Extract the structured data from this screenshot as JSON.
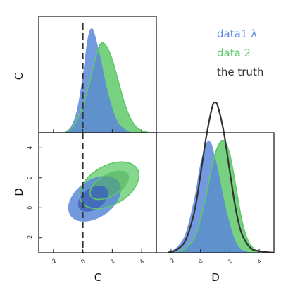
{
  "legend": [
    {
      "label": "data1 λ",
      "color": "#5b87d9"
    },
    {
      "label": "data 2",
      "color": "#5fc96a"
    },
    {
      "label": "the truth",
      "color": "#333333"
    }
  ],
  "chart_data": {
    "type": "corner",
    "parameters": [
      "C",
      "D"
    ],
    "axis_ranges": {
      "C": [
        -3,
        5
      ],
      "D": [
        -3,
        5
      ]
    },
    "ticks": [
      -2,
      0,
      2,
      4
    ],
    "truth_marker": {
      "parameter": "C",
      "value": 0,
      "style": "dashed vertical line"
    },
    "colors": {
      "data1": "#5b87d9",
      "data2": "#5fc96a",
      "truth": "#333333"
    },
    "panels": [
      {
        "panel": "C-marginal",
        "type": "area",
        "series": [
          {
            "name": "data1 λ",
            "x": [
              -1.2,
              -0.8,
              -0.4,
              0,
              0.2,
              0.4,
              0.6,
              0.8,
              1.2,
              1.6,
              2.0,
              2.4,
              2.8,
              3.2
            ],
            "values": [
              0.01,
              0.06,
              0.22,
              0.55,
              0.78,
              0.95,
              1.0,
              0.95,
              0.72,
              0.45,
              0.24,
              0.1,
              0.04,
              0.01
            ]
          },
          {
            "name": "data 2",
            "x": [
              -1.2,
              -0.8,
              -0.4,
              0,
              0.4,
              0.8,
              1.2,
              1.6,
              2.0,
              2.4,
              2.8,
              3.2,
              3.6,
              4.0,
              4.4
            ],
            "values": [
              0.01,
              0.04,
              0.12,
              0.26,
              0.45,
              0.68,
              0.85,
              0.83,
              0.7,
              0.5,
              0.3,
              0.15,
              0.06,
              0.02,
              0.005
            ]
          }
        ]
      },
      {
        "panel": "C-D-joint",
        "type": "contour",
        "series": [
          {
            "name": "data1 λ",
            "contours": [
              {
                "level": "outer",
                "center": [
                  0.8,
                  0.6
                ],
                "rx": 2.0,
                "ry": 1.25,
                "angle_deg": 35
              },
              {
                "level": "inner",
                "center": [
                  0.7,
                  0.6
                ],
                "rx": 1.15,
                "ry": 0.7,
                "angle_deg": 35
              }
            ]
          },
          {
            "name": "data 2",
            "contours": [
              {
                "level": "outer",
                "center": [
                  1.8,
                  1.5
                ],
                "rx": 2.2,
                "ry": 1.3,
                "angle_deg": 30
              },
              {
                "level": "inner",
                "center": [
                  1.8,
                  1.5
                ],
                "rx": 1.45,
                "ry": 0.72,
                "angle_deg": 30
              }
            ]
          }
        ]
      },
      {
        "panel": "D-marginal",
        "type": "area",
        "series": [
          {
            "name": "data1 λ",
            "x": [
              -2.2,
              -1.6,
              -1.0,
              -0.4,
              0,
              0.4,
              0.6,
              0.8,
              1.2,
              1.6,
              2.0,
              2.4,
              2.8,
              3.2
            ],
            "values": [
              0.01,
              0.05,
              0.18,
              0.5,
              0.8,
              0.98,
              1.0,
              0.96,
              0.74,
              0.48,
              0.26,
              0.1,
              0.03,
              0.01
            ]
          },
          {
            "name": "data 2",
            "x": [
              -1.6,
              -1.0,
              -0.4,
              0,
              0.4,
              0.8,
              1.2,
              1.6,
              2.0,
              2.4,
              2.8,
              3.2,
              3.6,
              4.0
            ],
            "values": [
              0.01,
              0.04,
              0.14,
              0.3,
              0.52,
              0.78,
              0.96,
              1.0,
              0.88,
              0.6,
              0.3,
              0.12,
              0.04,
              0.01
            ]
          },
          {
            "name": "the truth",
            "x": [
              -2.2,
              -1.6,
              -1.0,
              -0.4,
              0,
              0.4,
              0.8,
              1.0,
              1.2,
              1.6,
              2.0,
              2.4,
              2.8,
              3.4,
              4.0,
              5.0
            ],
            "values": [
              0.0,
              0.02,
              0.08,
              0.26,
              0.48,
              0.72,
              0.9,
              0.93,
              0.9,
              0.74,
              0.5,
              0.27,
              0.12,
              0.03,
              0.01,
              0.0
            ]
          }
        ]
      }
    ]
  }
}
